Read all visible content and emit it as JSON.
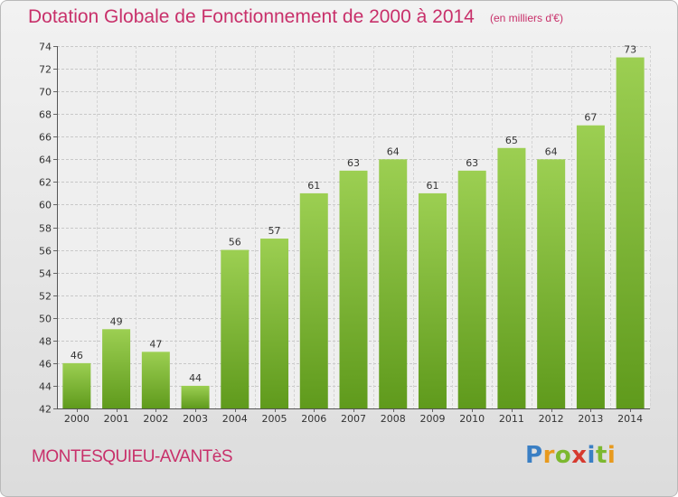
{
  "header": {
    "title": "Dotation Globale de Fonctionnement de 2000 à 2014",
    "subtitle": "(en milliers d'€)"
  },
  "footer": {
    "commune": "MONTESQUIEU-AVANTèS",
    "logo_text": "Proxiti"
  },
  "colors": {
    "title": "#c8306a",
    "bar_top": "#9ccf52",
    "bar_bottom": "#5f9a1c",
    "grid": "#c8c8c8"
  },
  "chart_data": {
    "type": "bar",
    "title": "Dotation Globale de Fonctionnement de 2000 à 2014",
    "subtitle": "(en milliers d'€)",
    "categories": [
      "2000",
      "2001",
      "2002",
      "2003",
      "2004",
      "2005",
      "2006",
      "2007",
      "2008",
      "2009",
      "2010",
      "2011",
      "2012",
      "2013",
      "2014"
    ],
    "values": [
      46,
      49,
      47,
      44,
      56,
      57,
      61,
      63,
      64,
      61,
      63,
      65,
      64,
      67,
      73
    ],
    "ylim": [
      42,
      74
    ],
    "yticks": [
      42,
      44,
      46,
      48,
      50,
      52,
      54,
      56,
      58,
      60,
      62,
      64,
      66,
      68,
      70,
      72,
      74
    ],
    "xlabel": "",
    "ylabel": "",
    "grid": true,
    "data_labels": true
  }
}
